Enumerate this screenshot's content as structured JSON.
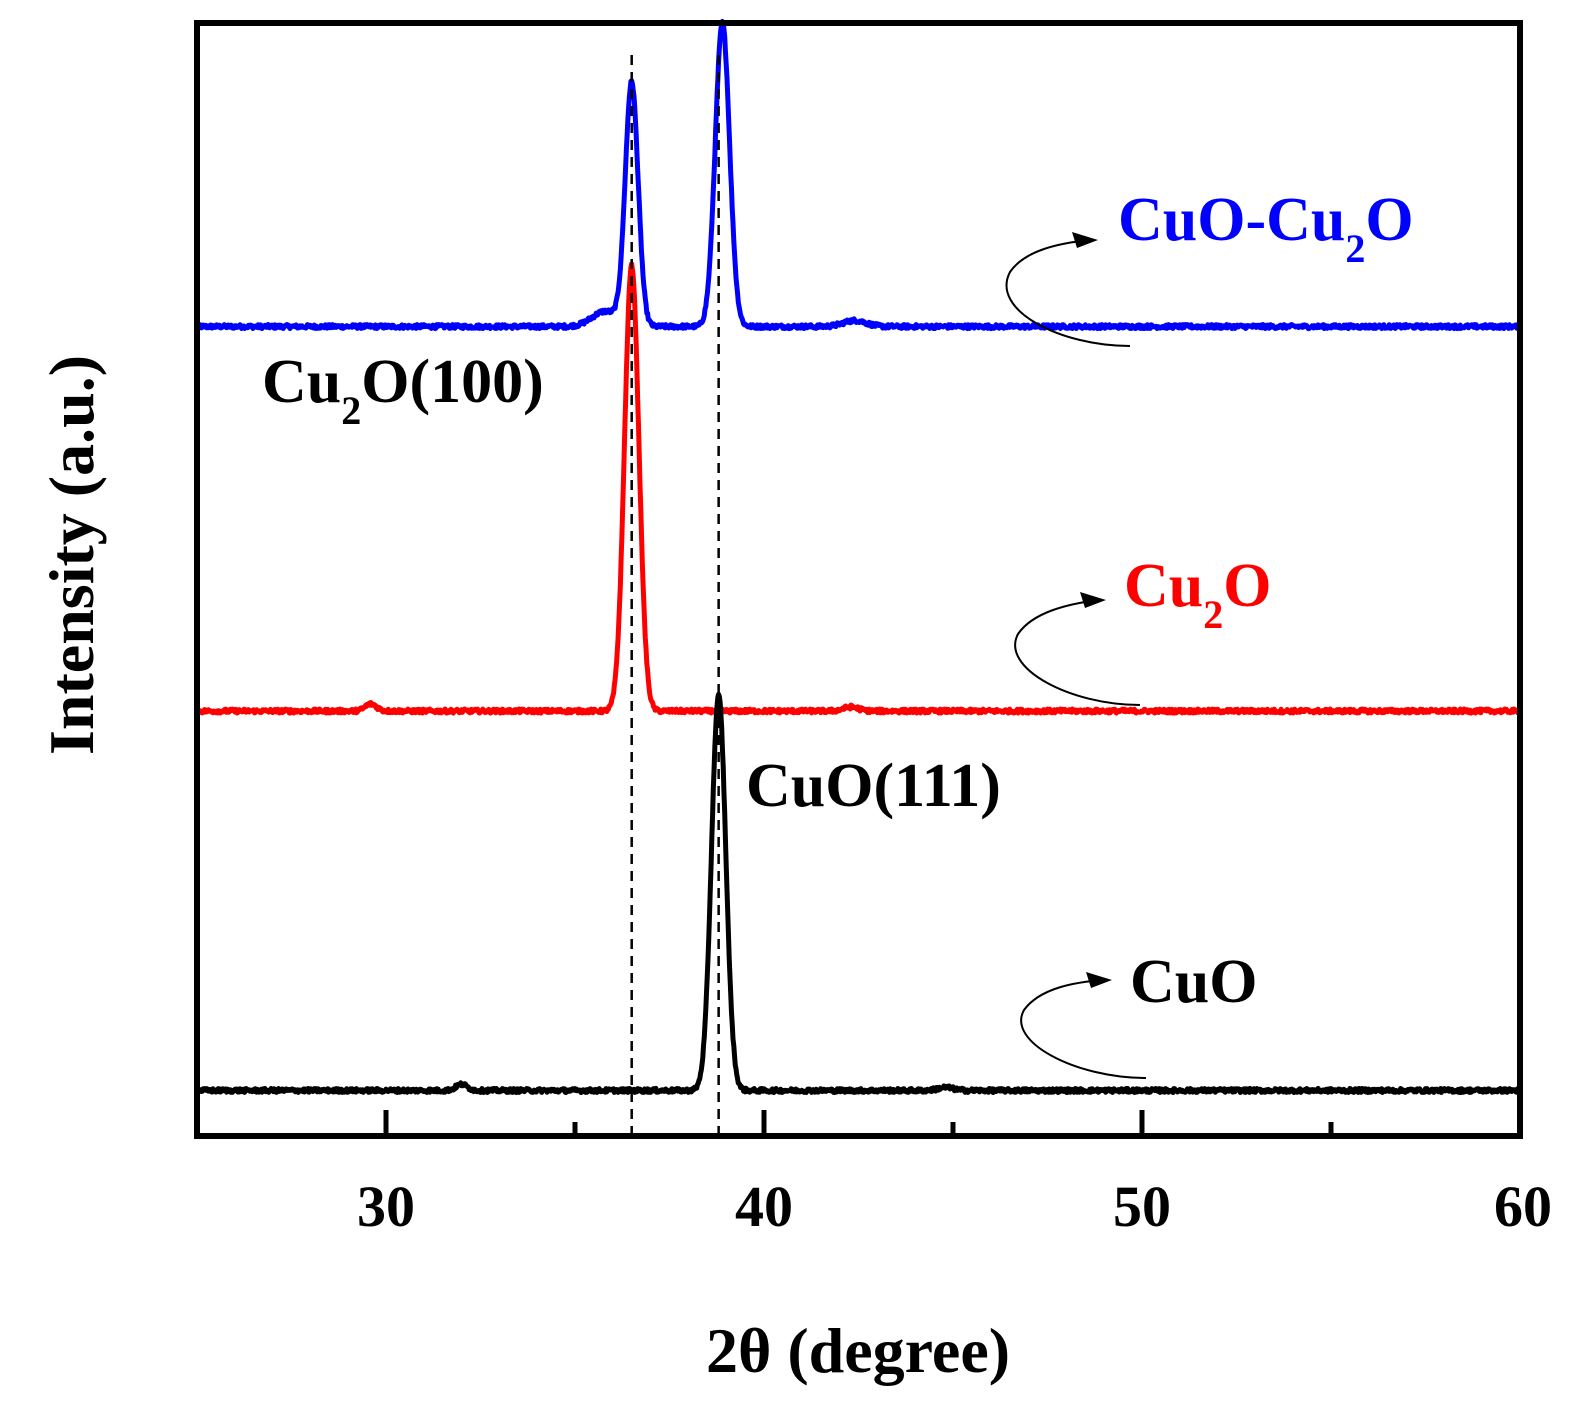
{
  "chart_data": {
    "type": "line",
    "xlabel": "2θ (degree)",
    "ylabel": "Intensity (a.u.)",
    "xlim": [
      25,
      60
    ],
    "xticks_major": [
      30,
      40,
      50,
      60
    ],
    "xticks_minor": [
      35,
      45,
      55
    ],
    "y_ticks_shown": false,
    "grid": false,
    "legend": "none",
    "series": [
      {
        "name_parts": [
          "CuO-Cu",
          "2",
          "O"
        ],
        "color": "#0000ff",
        "baseline": 800,
        "noise": 2.0,
        "peaks": [
          {
            "x": 35.8,
            "h": 15,
            "w": 0.35
          },
          {
            "x": 36.5,
            "h": 240,
            "w": 0.17
          },
          {
            "x": 38.9,
            "h": 300,
            "w": 0.19
          },
          {
            "x": 42.4,
            "h": 6,
            "w": 0.3
          }
        ]
      },
      {
        "name_parts": [
          "Cu",
          "2",
          "O"
        ],
        "color": "#ff0000",
        "baseline": 420,
        "noise": 2.0,
        "peaks": [
          {
            "x": 29.6,
            "h": 7,
            "w": 0.15
          },
          {
            "x": 36.5,
            "h": 440,
            "w": 0.19
          },
          {
            "x": 42.3,
            "h": 4,
            "w": 0.2
          }
        ]
      },
      {
        "name_parts": [
          "CuO",
          "",
          ""
        ],
        "color": "#000000",
        "baseline": 45,
        "noise": 2.0,
        "peaks": [
          {
            "x": 32.0,
            "h": 6,
            "w": 0.15
          },
          {
            "x": 38.8,
            "h": 390,
            "w": 0.19
          },
          {
            "x": 44.8,
            "h": 3,
            "w": 0.2
          }
        ]
      }
    ],
    "reference_lines": [
      {
        "x": 36.5,
        "style": "dashed"
      },
      {
        "x": 38.8,
        "style": "dashed"
      }
    ],
    "annotations": [
      {
        "parts": [
          "Cu",
          "2",
          "O(100)"
        ]
      },
      {
        "parts": [
          "CuO(111)",
          "",
          ""
        ]
      }
    ],
    "ylim": [
      0,
      1100
    ]
  }
}
